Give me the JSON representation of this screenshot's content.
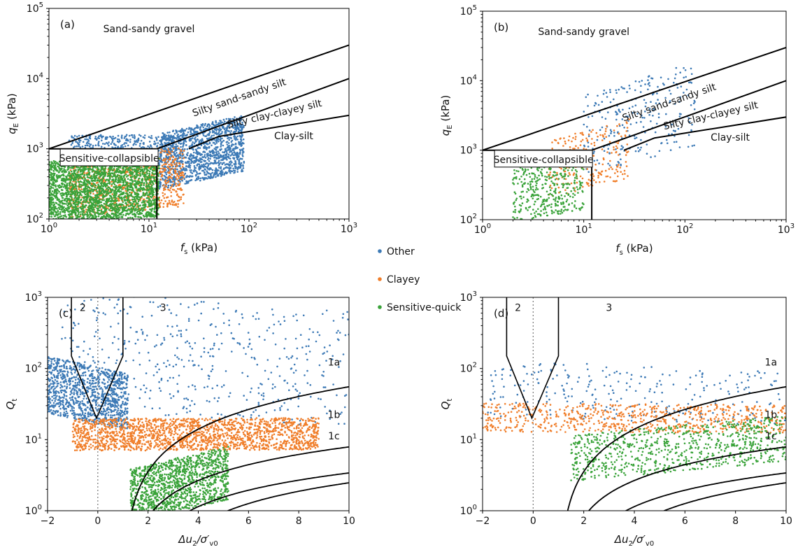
{
  "legend": {
    "placement": "center",
    "items": [
      {
        "label": "Other",
        "color": "#3d7ab6"
      },
      {
        "label": "Clayey",
        "color": "#f07e2a"
      },
      {
        "label": "Sensitive-quick",
        "color": "#3aa33a"
      }
    ]
  },
  "chart_data": [
    {
      "panel": "(a)",
      "type": "scatter",
      "xlabel": "f",
      "xlabel_sub": "s",
      "xlabel_unit": " (kPa)",
      "ylabel": "q",
      "ylabel_sub": "E",
      "ylabel_unit": " (kPa)",
      "xscale": "log",
      "yscale": "log",
      "xlim": [
        1,
        1000
      ],
      "ylim": [
        100,
        100000
      ],
      "xticks": [
        {
          "v": 1,
          "label": "10",
          "exp": "0"
        },
        {
          "v": 10,
          "label": "10",
          "exp": "1"
        },
        {
          "v": 100,
          "label": "10",
          "exp": "2"
        },
        {
          "v": 1000,
          "label": "10",
          "exp": "3"
        }
      ],
      "yticks": [
        {
          "v": 100,
          "label": "10",
          "exp": "2"
        },
        {
          "v": 1000,
          "label": "10",
          "exp": "3"
        },
        {
          "v": 10000,
          "label": "10",
          "exp": "4"
        },
        {
          "v": 100000,
          "label": "10",
          "exp": "5"
        }
      ],
      "boundaries": [
        {
          "points": [
            [
              1,
              1000
            ],
            [
              1000,
              30000
            ]
          ]
        },
        {
          "points": [
            [
              12,
              1000
            ],
            [
              1000,
              10000
            ]
          ]
        },
        {
          "points": [
            [
              25,
              1000
            ],
            [
              50,
              1500
            ],
            [
              1000,
              3000
            ]
          ]
        },
        {
          "points": [
            [
              1,
              1000
            ],
            [
              12,
              1000
            ]
          ]
        },
        {
          "points": [
            [
              12,
              100
            ],
            [
              12,
              1000
            ]
          ]
        }
      ],
      "zones": [
        {
          "label": "Sand-sandy gravel",
          "x": 10,
          "y": 50000,
          "rot": 0
        },
        {
          "label": "Silty sand-sandy silt",
          "x": 80,
          "y": 5300,
          "rot": -19
        },
        {
          "label": "Silty clay-clayey silt",
          "x": 180,
          "y": 3100,
          "rot": -13
        },
        {
          "label": "Clay-silt",
          "x": 280,
          "y": 1500,
          "rot": 0
        },
        {
          "label": "Sensitive-collapsible",
          "x": 4,
          "y": 720,
          "rot": 0,
          "boxed": true
        }
      ],
      "clusters": [
        {
          "series": "Other",
          "n": 1400,
          "xlog": [
            1.1,
            1.95
          ],
          "ylog": [
            2.55,
            3.35
          ],
          "trend": 0.55
        },
        {
          "series": "Other",
          "n": 300,
          "xlog": [
            0.2,
            1.3
          ],
          "ylog": [
            2.95,
            3.2
          ],
          "trend": 0.0
        },
        {
          "series": "Clayey",
          "n": 900,
          "xlog": [
            0.2,
            1.35
          ],
          "ylog": [
            2.1,
            2.95
          ],
          "trend": 0.3
        },
        {
          "series": "Sensitive-quick",
          "n": 2500,
          "xlog": [
            0.0,
            1.1
          ],
          "ylog": [
            2.0,
            2.85
          ],
          "trend": 0.1
        }
      ]
    },
    {
      "panel": "(b)",
      "type": "scatter",
      "xlabel": "f",
      "xlabel_sub": "s",
      "xlabel_unit": " (kPa)",
      "ylabel": "q",
      "ylabel_sub": "E",
      "ylabel_unit": " (kPa)",
      "xscale": "log",
      "yscale": "log",
      "xlim": [
        1,
        1000
      ],
      "ylim": [
        100,
        100000
      ],
      "xticks": [
        {
          "v": 1,
          "label": "10",
          "exp": "0"
        },
        {
          "v": 10,
          "label": "10",
          "exp": "1"
        },
        {
          "v": 100,
          "label": "10",
          "exp": "2"
        },
        {
          "v": 1000,
          "label": "10",
          "exp": "3"
        }
      ],
      "yticks": [
        {
          "v": 100,
          "label": "10",
          "exp": "2"
        },
        {
          "v": 1000,
          "label": "10",
          "exp": "3"
        },
        {
          "v": 10000,
          "label": "10",
          "exp": "4"
        },
        {
          "v": 100000,
          "label": "10",
          "exp": "5"
        }
      ],
      "boundaries": [
        {
          "points": [
            [
              1,
              1000
            ],
            [
              1000,
              30000
            ]
          ]
        },
        {
          "points": [
            [
              12,
              1000
            ],
            [
              1000,
              10000
            ]
          ]
        },
        {
          "points": [
            [
              25,
              1000
            ],
            [
              50,
              1500
            ],
            [
              1000,
              3000
            ]
          ]
        },
        {
          "points": [
            [
              1,
              1000
            ],
            [
              12,
              1000
            ]
          ]
        },
        {
          "points": [
            [
              12,
              100
            ],
            [
              12,
              1000
            ]
          ]
        }
      ],
      "zones": [
        {
          "label": "Sand-sandy gravel",
          "x": 10,
          "y": 50000,
          "rot": 0
        },
        {
          "label": "Silty sand-sandy silt",
          "x": 70,
          "y": 4800,
          "rot": -19
        },
        {
          "label": "Silty clay-clayey silt",
          "x": 180,
          "y": 3100,
          "rot": -13
        },
        {
          "label": "Clay-silt",
          "x": 280,
          "y": 1500,
          "rot": 0
        },
        {
          "label": "Sensitive-collapsible",
          "x": 4,
          "y": 720,
          "rot": 0,
          "boxed": true
        }
      ],
      "clusters": [
        {
          "series": "Other",
          "n": 260,
          "xlog": [
            1.0,
            2.1
          ],
          "ylog": [
            2.85,
            4.05
          ],
          "trend": 0.6
        },
        {
          "series": "Clayey",
          "n": 240,
          "xlog": [
            0.65,
            1.45
          ],
          "ylog": [
            2.45,
            3.3
          ],
          "trend": 0.6
        },
        {
          "series": "Sensitive-quick",
          "n": 420,
          "xlog": [
            0.3,
            1.0
          ],
          "ylog": [
            2.05,
            2.9
          ],
          "trend": 0.3
        }
      ]
    },
    {
      "panel": "(c)",
      "type": "scatter",
      "xlabel": "Δu",
      "xlabel_sub": "2",
      "xlabel_unit": "/σ′",
      "xlabel_sub2": "v0",
      "ylabel": "Q",
      "ylabel_sub": "t",
      "ylabel_unit": "",
      "xscale": "linear",
      "yscale": "log",
      "xlim": [
        -2,
        10
      ],
      "ylim": [
        1,
        1000
      ],
      "xticks": [
        {
          "v": -2,
          "label": "−2"
        },
        {
          "v": 0,
          "label": "0"
        },
        {
          "v": 2,
          "label": "2"
        },
        {
          "v": 4,
          "label": "4"
        },
        {
          "v": 6,
          "label": "6"
        },
        {
          "v": 8,
          "label": "8"
        },
        {
          "v": 10,
          "label": "10"
        }
      ],
      "yticks": [
        {
          "v": 1,
          "label": "10",
          "exp": "0"
        },
        {
          "v": 10,
          "label": "10",
          "exp": "1"
        },
        {
          "v": 100,
          "label": "10",
          "exp": "2"
        },
        {
          "v": 1000,
          "label": "10",
          "exp": "3"
        }
      ],
      "zones": [
        {
          "label": "2",
          "x": -0.6,
          "y": 700,
          "rot": 0
        },
        {
          "label": "3",
          "x": 2.6,
          "y": 700,
          "rot": 0
        },
        {
          "label": "1a",
          "x": 9.4,
          "y": 120,
          "rot": 0
        },
        {
          "label": "1b",
          "x": 9.4,
          "y": 22,
          "rot": 0
        },
        {
          "label": "1c",
          "x": 9.4,
          "y": 11,
          "rot": 0
        }
      ],
      "clusters": [
        {
          "series": "Other",
          "n": 1100,
          "xlog": [
            -2.0,
            1.2
          ],
          "ylog": [
            1.25,
            2.05
          ],
          "trend": -0.5
        },
        {
          "series": "Other",
          "n": 500,
          "xlog": [
            -1.5,
            10.0
          ],
          "ylog": [
            1.3,
            2.95
          ],
          "trend": -0.3
        },
        {
          "series": "Clayey",
          "n": 1800,
          "xlog": [
            -1.0,
            8.8
          ],
          "ylog": [
            0.85,
            1.3
          ],
          "trend": 0.05
        },
        {
          "series": "Sensitive-quick",
          "n": 1300,
          "xlog": [
            1.3,
            5.2
          ],
          "ylog": [
            0.0,
            0.75
          ],
          "trend": 0.7
        }
      ]
    },
    {
      "panel": "(d)",
      "type": "scatter",
      "xlabel": "Δu",
      "xlabel_sub": "2",
      "xlabel_unit": "/σ′",
      "xlabel_sub2": "v0",
      "ylabel": "Q",
      "ylabel_sub": "t",
      "ylabel_unit": "",
      "xscale": "linear",
      "yscale": "log",
      "xlim": [
        -2,
        10
      ],
      "ylim": [
        1,
        1000
      ],
      "xticks": [
        {
          "v": -2,
          "label": "−2"
        },
        {
          "v": 0,
          "label": "0"
        },
        {
          "v": 2,
          "label": "2"
        },
        {
          "v": 4,
          "label": "4"
        },
        {
          "v": 6,
          "label": "6"
        },
        {
          "v": 8,
          "label": "8"
        },
        {
          "v": 10,
          "label": "10"
        }
      ],
      "yticks": [
        {
          "v": 1,
          "label": "10",
          "exp": "0"
        },
        {
          "v": 10,
          "label": "10",
          "exp": "1"
        },
        {
          "v": 100,
          "label": "10",
          "exp": "2"
        },
        {
          "v": 1000,
          "label": "10",
          "exp": "3"
        }
      ],
      "zones": [
        {
          "label": "2",
          "x": -0.6,
          "y": 700,
          "rot": 0
        },
        {
          "label": "3",
          "x": 3.0,
          "y": 700,
          "rot": 0
        },
        {
          "label": "1a",
          "x": 9.4,
          "y": 120,
          "rot": 0
        },
        {
          "label": "1b",
          "x": 9.4,
          "y": 22,
          "rot": 0
        },
        {
          "label": "1c",
          "x": 9.4,
          "y": 11,
          "rot": 0
        }
      ],
      "clusters": [
        {
          "series": "Other",
          "n": 260,
          "xlog": [
            -1.8,
            10.0
          ],
          "ylog": [
            1.25,
            2.05
          ],
          "trend": -0.3
        },
        {
          "series": "Clayey",
          "n": 700,
          "xlog": [
            -2.0,
            10.0
          ],
          "ylog": [
            1.1,
            1.5
          ],
          "trend": -0.1
        },
        {
          "series": "Sensitive-quick",
          "n": 800,
          "xlog": [
            1.5,
            10.0
          ],
          "ylog": [
            0.55,
            1.2
          ],
          "trend": 0.7
        }
      ]
    }
  ]
}
